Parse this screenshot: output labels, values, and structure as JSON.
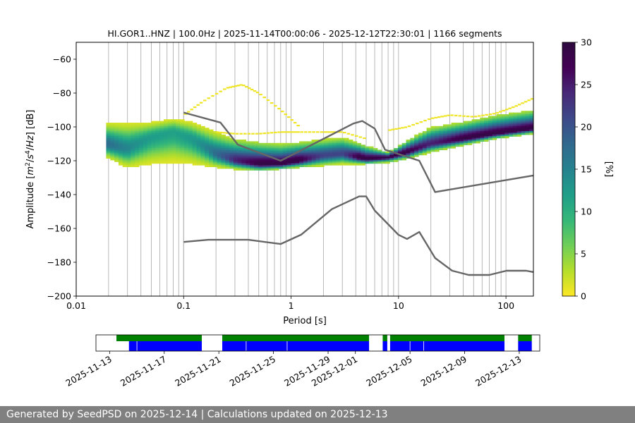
{
  "footer": {
    "text": "Generated by SeedPSD on 2025-12-14 | Calculations updated on 2025-12-13"
  },
  "colors": {
    "green": "#008000",
    "blue": "#0000ff",
    "model": "#666666",
    "grid": "#b0b0b0",
    "footer_bg": "#808080"
  },
  "chart_data": [
    {
      "type": "heatmap",
      "title": "HI.GOR1..HNZ | 100.0Hz | 2025-11-14T00:00:06 - 2025-12-12T22:30:01 | 1166 segments",
      "xlabel": "Period [s]",
      "ylabel_parts": [
        "Amplitude [",
        "m",
        "2",
        "/",
        "s",
        "4",
        "/",
        "Hz",
        "] [dB]"
      ],
      "xscale": "log",
      "xlim": [
        0.01,
        180
      ],
      "ylim": [
        -200,
        -50
      ],
      "xticks": [
        0.01,
        0.1,
        1,
        10,
        100
      ],
      "xtick_labels": [
        "0.01",
        "0.1",
        "1",
        "10",
        "100"
      ],
      "yticks": [
        -200,
        -180,
        -160,
        -140,
        -120,
        -100,
        -80,
        -60
      ],
      "ytick_labels": [
        "−200",
        "−180",
        "−160",
        "−140",
        "−120",
        "−100",
        "−80",
        "−60"
      ],
      "grid": "vertical lines at period bins",
      "colormap": "viridis_r",
      "colorbar": {
        "label": "[%]",
        "range": [
          0,
          30
        ],
        "ticks": [
          0,
          5,
          10,
          15,
          20,
          25,
          30
        ],
        "tick_labels": [
          "0",
          "5",
          "10",
          "15",
          "20",
          "25",
          "30"
        ]
      },
      "grid_periods": [
        0.02,
        0.03,
        0.04,
        0.05,
        0.06,
        0.07,
        0.08,
        0.09,
        0.1,
        0.2,
        0.3,
        0.4,
        0.5,
        0.6,
        0.7,
        0.8,
        0.9,
        2,
        3,
        4,
        5,
        6,
        7,
        8,
        9,
        20,
        30,
        40,
        50,
        60,
        70,
        80,
        90
      ],
      "pdf_mode_curve": {
        "period": [
          0.019,
          0.03,
          0.05,
          0.08,
          0.12,
          0.2,
          0.3,
          0.5,
          0.8,
          1.2,
          2,
          3,
          5,
          8,
          12,
          20,
          40,
          80,
          180
        ],
        "mode_db": [
          -110,
          -113,
          -106,
          -103,
          -107,
          -116,
          -120,
          -122,
          -122,
          -120,
          -117,
          -116,
          -119,
          -118,
          -115,
          -110,
          -107,
          -104,
          -101
        ],
        "low_db": [
          -118,
          -124,
          -122,
          -121,
          -122,
          -124,
          -125,
          -126,
          -125,
          -124,
          -123,
          -122,
          -122,
          -121,
          -119,
          -115,
          -111,
          -107,
          -104
        ],
        "high_db": [
          -98,
          -98,
          -97,
          -95,
          -97,
          -103,
          -107,
          -109,
          -110,
          -109,
          -107,
          -106,
          -111,
          -115,
          -108,
          -100,
          -97,
          -93,
          -90
        ]
      },
      "sparse_outlier_curves": [
        {
          "period": [
            0.1,
            0.15,
            0.25,
            0.35,
            0.5,
            0.8,
            1.2
          ],
          "db": [
            -93,
            -85,
            -77,
            -75,
            -80,
            -90,
            -100
          ]
        },
        {
          "period": [
            0.2,
            0.3,
            0.5,
            0.8,
            1.2,
            2,
            3,
            5
          ],
          "db": [
            -103,
            -104,
            -104,
            -103,
            -103,
            -103,
            -103,
            -107
          ]
        },
        {
          "period": [
            8,
            12,
            20,
            30,
            50,
            80,
            120,
            180
          ],
          "db": [
            -102,
            -100,
            -95,
            -93,
            -94,
            -92,
            -88,
            -83
          ]
        }
      ],
      "model_lines": [
        {
          "name": "high noise model",
          "period": [
            0.1,
            0.22,
            0.32,
            0.8,
            3.8,
            4.6,
            6,
            7.5,
            15.6,
            21.9,
            180
          ],
          "db": [
            -91.5,
            -97.4,
            -110.5,
            -120,
            -98,
            -96.5,
            -101,
            -113.5,
            -120,
            -138.5,
            -128.7
          ]
        },
        {
          "name": "low noise model",
          "period": [
            0.1,
            0.17,
            0.4,
            0.8,
            1.24,
            2.4,
            4.3,
            5,
            6,
            10,
            12,
            15.6,
            21.9,
            31.6,
            45,
            70,
            101,
            154,
            180
          ],
          "db": [
            -168,
            -166.7,
            -166.7,
            -169.2,
            -163.7,
            -148.6,
            -141.1,
            -141.1,
            -149.4,
            -163.8,
            -166.2,
            -162.1,
            -177.5,
            -185,
            -187.5,
            -187.5,
            -185,
            -185,
            -185.8
          ]
        }
      ]
    },
    {
      "type": "timeline",
      "xtick_labels": [
        "2025-11-13",
        "2025-11-17",
        "2025-11-21",
        "2025-11-25",
        "2025-11-29",
        "2025-12-01",
        "2025-12-05",
        "2025-12-09",
        "2025-12-13"
      ],
      "xtick_dates": [
        "2025-11-13",
        "2025-11-17",
        "2025-11-21",
        "2025-11-25",
        "2025-11-29",
        "2025-12-01",
        "2025-12-05",
        "2025-12-09",
        "2025-12-13"
      ],
      "xlim": [
        "2025-11-12T00:00",
        "2025-12-14T12:00"
      ],
      "data_segments": [
        [
          "2025-11-13T12:00",
          "2025-11-19T18:00"
        ],
        [
          "2025-11-21T06:00",
          "2025-12-02T00:00"
        ],
        [
          "2025-12-03T00:00",
          "2025-12-03T08:00"
        ],
        [
          "2025-12-03T13:00",
          "2025-12-11T22:00"
        ],
        [
          "2025-12-12T22:00",
          "2025-12-13T22:00"
        ]
      ],
      "psd_segments": [
        [
          "2025-11-14T10:00",
          "2025-11-19T18:00"
        ],
        [
          "2025-11-21T06:00",
          "2025-12-02T00:00"
        ],
        [
          "2025-12-03T00:00",
          "2025-12-03T08:00"
        ],
        [
          "2025-12-03T13:00",
          "2025-12-11T22:00"
        ],
        [
          "2025-12-12T22:00",
          "2025-12-13T22:00"
        ]
      ],
      "segment_breaks": [
        "2025-11-15T00:00",
        "2025-11-23T00:00",
        "2025-11-26T00:00",
        "2025-12-05T00:00",
        "2025-12-06T00:00"
      ]
    }
  ]
}
